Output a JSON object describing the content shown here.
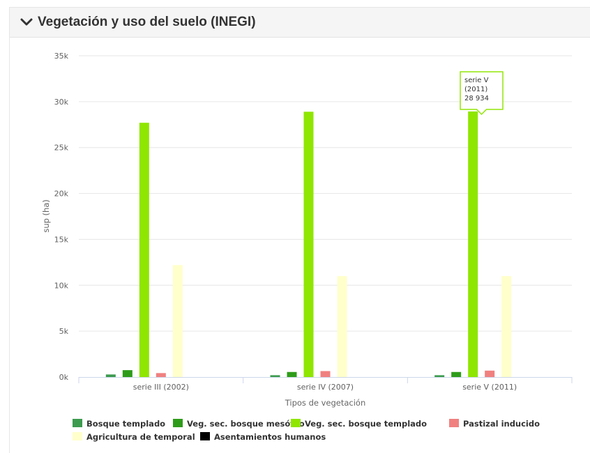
{
  "panel": {
    "title": "Vegetación y uso del suelo (INEGI)",
    "collapse_icon": "chevron-down-icon"
  },
  "chart_data": {
    "type": "bar",
    "categories": [
      "serie III (2002)",
      "serie IV (2007)",
      "serie V (2011)"
    ],
    "xlabel": "Tipos de vegetación",
    "ylabel": "sup (ha)",
    "ylim": [
      0,
      35000
    ],
    "yticks": [
      "0k",
      "5k",
      "10k",
      "15k",
      "20k",
      "25k",
      "30k",
      "35k"
    ],
    "grid": true,
    "legend_position": "bottom",
    "series": [
      {
        "name": "Bosque templado",
        "color": "#3d9b4f",
        "values": [
          280,
          200,
          200
        ]
      },
      {
        "name": "Veg. sec. bosque mesófilo",
        "color": "#2e9c1a",
        "values": [
          750,
          550,
          550
        ]
      },
      {
        "name": "Veg. sec. bosque templado",
        "color": "#8fe600",
        "values": [
          27700,
          28900,
          28934
        ]
      },
      {
        "name": "Pastizal inducido",
        "color": "#f08080",
        "values": [
          430,
          650,
          700
        ]
      },
      {
        "name": "Agricultura de temporal",
        "color": "#ffffcc",
        "values": [
          12200,
          11000,
          11000
        ]
      },
      {
        "name": "Asentamientos humanos",
        "color": "#000000",
        "values": [
          0,
          0,
          0
        ]
      }
    ],
    "tooltip": {
      "series_index": 2,
      "category_index": 2,
      "lines": [
        "serie V",
        "(2011)",
        "28 934"
      ],
      "border_color": "#8fe600"
    }
  }
}
